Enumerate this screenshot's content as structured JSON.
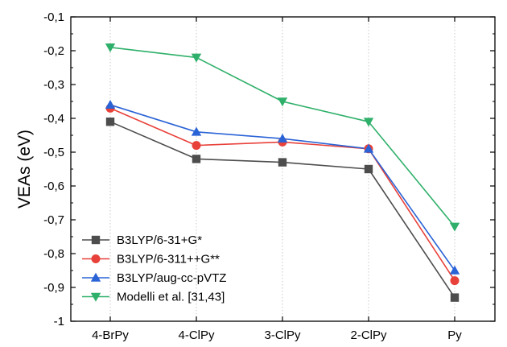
{
  "chart_data": {
    "type": "line",
    "title": "",
    "xlabel": "",
    "ylabel": "VEAs (eV)",
    "categories": [
      "4-BrPy",
      "4-ClPy",
      "3-ClPy",
      "2-ClPy",
      "Py"
    ],
    "ylim": [
      -1,
      -0.1
    ],
    "yticks": [
      -0.1,
      -0.2,
      -0.3,
      -0.4,
      -0.5,
      -0.6,
      -0.7,
      -0.8,
      -0.9,
      -1
    ],
    "ytick_labels": [
      "-0,1",
      "-0,2",
      "-0,3",
      "-0,4",
      "-0,5",
      "-0,6",
      "-0,7",
      "-0,8",
      "-0,9",
      "-1"
    ],
    "grid": "vertical dotted at categories",
    "legend_position": "bottom-left",
    "series": [
      {
        "name": "B3LYP/6-31+G*",
        "color": "#4d4d4d",
        "marker": "square",
        "values": [
          -0.41,
          -0.52,
          -0.53,
          -0.55,
          -0.93
        ]
      },
      {
        "name": "B3LYP/6-311++G**",
        "color": "#e8413a",
        "marker": "circle",
        "values": [
          -0.37,
          -0.48,
          -0.47,
          -0.49,
          -0.88
        ]
      },
      {
        "name": "B3LYP/aug-cc-pVTZ",
        "color": "#2a63d6",
        "marker": "triangle-up",
        "values": [
          -0.36,
          -0.44,
          -0.46,
          -0.49,
          -0.85
        ]
      },
      {
        "name": "Modelli et al. [31,43]",
        "color": "#2fb06a",
        "marker": "triangle-down",
        "values": [
          -0.19,
          -0.22,
          -0.35,
          -0.41,
          -0.72
        ]
      }
    ]
  }
}
